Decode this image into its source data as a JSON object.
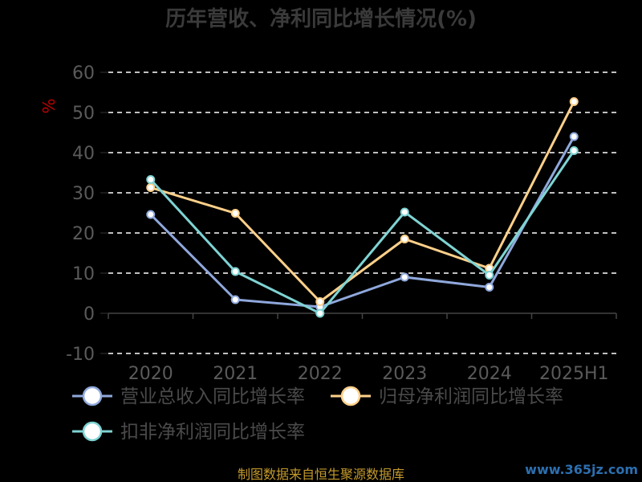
{
  "chart_data": {
    "type": "line",
    "title": "历年营收、净利同比增长情况(%)",
    "ylabel": "%",
    "xlabel": "",
    "categories": [
      "2020",
      "2021",
      "2022",
      "2023",
      "2024",
      "2025H1"
    ],
    "yticks": [
      "60",
      "50",
      "40",
      "30",
      "20",
      "10",
      "0",
      "-10"
    ],
    "ylim": [
      -10,
      60
    ],
    "grid": true,
    "legend_position": "bottom",
    "series": [
      {
        "name": "营业总收入同比增长率",
        "color": "#8fa8dc",
        "values": [
          24.6,
          3.4,
          1.6,
          9.0,
          6.5,
          44.0
        ]
      },
      {
        "name": "归母净利润同比增长率",
        "color": "#ffd08a",
        "values": [
          31.3,
          24.9,
          2.9,
          18.5,
          11.2,
          52.7
        ]
      },
      {
        "name": "扣非净利润同比增长率",
        "color": "#7fd3d3",
        "values": [
          33.3,
          10.4,
          0.0,
          25.2,
          9.5,
          40.5
        ]
      }
    ]
  },
  "footer": {
    "source": "制图数据来自恒生聚源数据库"
  },
  "watermark": {
    "text": "www.365jz.com"
  }
}
